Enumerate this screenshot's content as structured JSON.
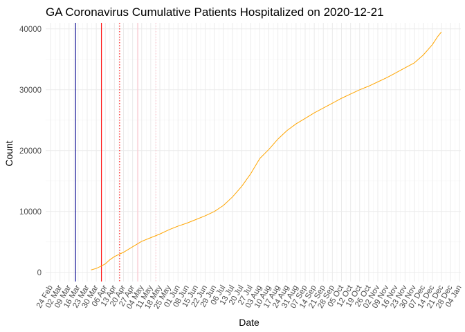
{
  "chart_data": {
    "type": "line",
    "title": "GA Coronavirus Cumulative Patients Hospitalized on 2020-12-21",
    "xlabel": "Date",
    "ylabel": "Count",
    "x_axis": {
      "type": "date",
      "range": [
        "2020-02-20",
        "2021-01-05"
      ],
      "tick_labels": [
        "24 Feb",
        "02 Mar",
        "09 Mar",
        "16 Mar",
        "23 Mar",
        "30 Mar",
        "06 Apr",
        "13 Apr",
        "20 Apr",
        "27 Apr",
        "04 May",
        "11 May",
        "18 May",
        "25 May",
        "01 Jun",
        "08 Jun",
        "15 Jun",
        "22 Jun",
        "29 Jun",
        "06 Jul",
        "13 Jul",
        "20 Jul",
        "27 Jul",
        "03 Aug",
        "10 Aug",
        "17 Aug",
        "24 Aug",
        "31 Aug",
        "07 Sep",
        "14 Sep",
        "21 Sep",
        "28 Sep",
        "05 Oct",
        "12 Oct",
        "19 Oct",
        "26 Oct",
        "02 Nov",
        "09 Nov",
        "16 Nov",
        "23 Nov",
        "30 Nov",
        "07 Dec",
        "14 Dec",
        "21 Dec",
        "28 Dec",
        "04 Jan"
      ],
      "tick_dates": [
        "2020-02-24",
        "2020-03-02",
        "2020-03-09",
        "2020-03-16",
        "2020-03-23",
        "2020-03-30",
        "2020-04-06",
        "2020-04-13",
        "2020-04-20",
        "2020-04-27",
        "2020-05-04",
        "2020-05-11",
        "2020-05-18",
        "2020-05-25",
        "2020-06-01",
        "2020-06-08",
        "2020-06-15",
        "2020-06-22",
        "2020-06-29",
        "2020-07-06",
        "2020-07-13",
        "2020-07-20",
        "2020-07-27",
        "2020-08-03",
        "2020-08-10",
        "2020-08-17",
        "2020-08-24",
        "2020-08-31",
        "2020-09-07",
        "2020-09-14",
        "2020-09-21",
        "2020-09-28",
        "2020-10-05",
        "2020-10-12",
        "2020-10-19",
        "2020-10-26",
        "2020-11-02",
        "2020-11-09",
        "2020-11-16",
        "2020-11-23",
        "2020-11-30",
        "2020-12-07",
        "2020-12-14",
        "2020-12-21",
        "2020-12-28",
        "2021-01-04"
      ]
    },
    "y_axis": {
      "range": [
        -1500,
        41000
      ],
      "ticks": [
        0,
        10000,
        20000,
        30000,
        40000
      ],
      "tick_labels": [
        "0",
        "10000",
        "20000",
        "30000",
        "40000"
      ]
    },
    "grid": true,
    "legend": "none",
    "series": [
      {
        "color": "#FFA500",
        "points": [
          [
            "2020-03-26",
            400
          ],
          [
            "2020-03-30",
            650
          ],
          [
            "2020-04-03",
            1050
          ],
          [
            "2020-04-06",
            1400
          ],
          [
            "2020-04-09",
            2000
          ],
          [
            "2020-04-13",
            2600
          ],
          [
            "2020-04-20",
            3300
          ],
          [
            "2020-04-27",
            4200
          ],
          [
            "2020-05-04",
            5100
          ],
          [
            "2020-05-11",
            5700
          ],
          [
            "2020-05-18",
            6300
          ],
          [
            "2020-05-25",
            7000
          ],
          [
            "2020-06-01",
            7600
          ],
          [
            "2020-06-08",
            8100
          ],
          [
            "2020-06-15",
            8700
          ],
          [
            "2020-06-22",
            9300
          ],
          [
            "2020-06-29",
            10000
          ],
          [
            "2020-07-06",
            11000
          ],
          [
            "2020-07-13",
            12400
          ],
          [
            "2020-07-20",
            14100
          ],
          [
            "2020-07-27",
            16200
          ],
          [
            "2020-08-03",
            18700
          ],
          [
            "2020-08-10",
            20200
          ],
          [
            "2020-08-17",
            21900
          ],
          [
            "2020-08-24",
            23300
          ],
          [
            "2020-08-31",
            24400
          ],
          [
            "2020-09-07",
            25300
          ],
          [
            "2020-09-14",
            26200
          ],
          [
            "2020-09-21",
            27000
          ],
          [
            "2020-09-28",
            27800
          ],
          [
            "2020-10-05",
            28600
          ],
          [
            "2020-10-12",
            29300
          ],
          [
            "2020-10-19",
            30000
          ],
          [
            "2020-10-26",
            30600
          ],
          [
            "2020-11-02",
            31300
          ],
          [
            "2020-11-09",
            32000
          ],
          [
            "2020-11-16",
            32800
          ],
          [
            "2020-11-23",
            33600
          ],
          [
            "2020-11-30",
            34400
          ],
          [
            "2020-12-07",
            35700
          ],
          [
            "2020-12-14",
            37400
          ],
          [
            "2020-12-18",
            38700
          ],
          [
            "2020-12-21",
            39500
          ]
        ]
      }
    ],
    "reference_lines": [
      {
        "x": "2020-03-14",
        "color": "#00008B",
        "style": "solid"
      },
      {
        "x": "2020-04-03",
        "color": "#FF0000",
        "style": "solid"
      },
      {
        "x": "2020-04-17",
        "color": "#FF0000",
        "style": "dotted"
      },
      {
        "x": "2020-05-01",
        "color": "#FFC0CB",
        "style": "solid"
      },
      {
        "x": "2020-05-15",
        "color": "#FFC0CB",
        "style": "dotted"
      }
    ]
  }
}
